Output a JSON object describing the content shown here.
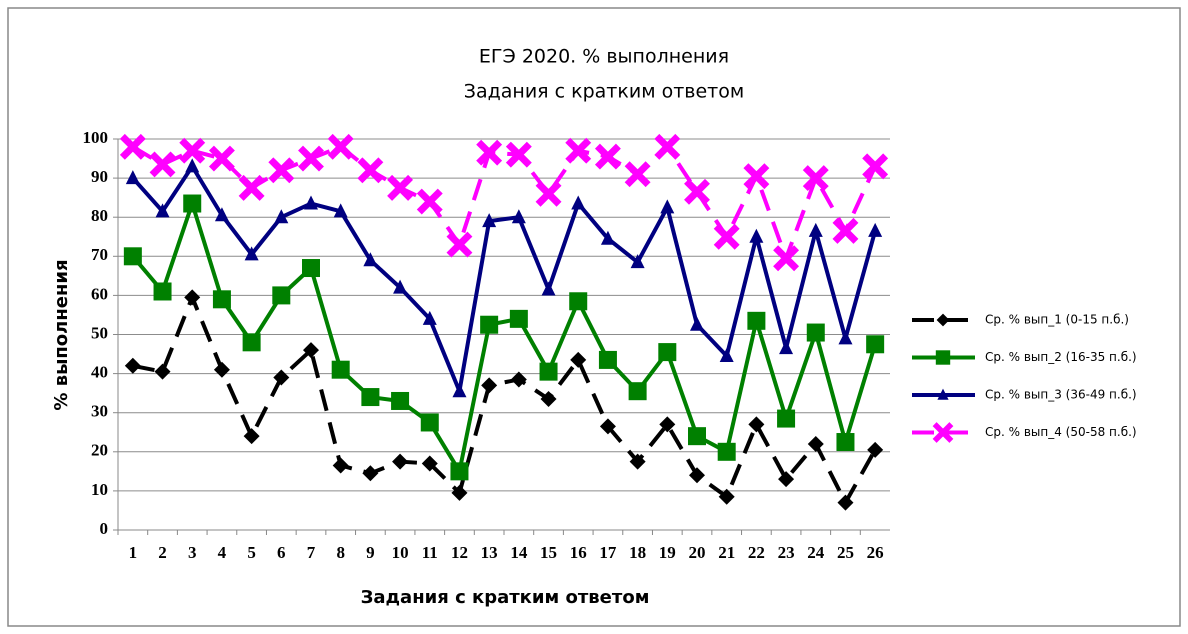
{
  "chart_data": {
    "type": "line",
    "title": "ЕГЭ 2020. % выполнения",
    "subtitle": "Задания с кратким ответом",
    "xlabel": "Задания с кратким ответом",
    "ylabel": "% выполнения",
    "categories": [
      "1",
      "2",
      "3",
      "4",
      "5",
      "6",
      "7",
      "8",
      "9",
      "10",
      "11",
      "12",
      "13",
      "14",
      "15",
      "16",
      "17",
      "18",
      "19",
      "20",
      "21",
      "22",
      "23",
      "24",
      "25",
      "26"
    ],
    "ylim": [
      0,
      100
    ],
    "yticks": [
      0,
      10,
      20,
      30,
      40,
      50,
      60,
      70,
      80,
      90,
      100
    ],
    "grid": true,
    "legend": "right",
    "series": [
      {
        "name": "Ср. % вып_1 (0-15 п.б.)",
        "color": "#000000",
        "dashed": true,
        "marker": "diamond",
        "values": [
          42,
          40.5,
          59.5,
          41,
          24,
          39,
          46,
          16.5,
          14.5,
          17.5,
          17,
          9.5,
          37,
          38.5,
          33.5,
          43.5,
          26.5,
          17.5,
          27,
          14,
          8.5,
          27,
          13,
          22,
          7,
          20.5
        ]
      },
      {
        "name": "Ср. % вып_2 (16-35 п.б.)",
        "color": "#008000",
        "dashed": false,
        "marker": "square",
        "values": [
          70,
          61,
          83.5,
          59,
          48,
          60,
          67,
          41,
          34,
          33,
          27.5,
          15,
          52.5,
          54,
          40.5,
          58.5,
          43.5,
          35.5,
          45.5,
          24,
          20,
          53.5,
          28.5,
          50.5,
          22.5,
          47.5
        ]
      },
      {
        "name": "Ср. % вып_3 (36-49 п.б.)",
        "color": "#000080",
        "dashed": false,
        "marker": "triangle",
        "values": [
          90,
          81.5,
          93,
          80.5,
          70.5,
          80,
          83.5,
          81.5,
          69,
          62,
          54,
          35.5,
          79,
          80,
          61.5,
          83.5,
          74.5,
          68.5,
          82.5,
          52.5,
          44.5,
          75,
          46.5,
          76.5,
          49,
          76.5
        ]
      },
      {
        "name": "Ср. % вып_4 (50-58 п.б.)",
        "color": "#ff00ff",
        "dashed": true,
        "marker": "cross",
        "values": [
          98,
          93.5,
          97,
          95,
          87.5,
          92,
          95,
          98,
          92,
          87.5,
          84,
          73,
          96.5,
          96,
          86,
          97,
          95.5,
          91,
          98,
          86.5,
          75,
          90.5,
          69.5,
          90,
          76.5,
          93
        ]
      }
    ]
  }
}
